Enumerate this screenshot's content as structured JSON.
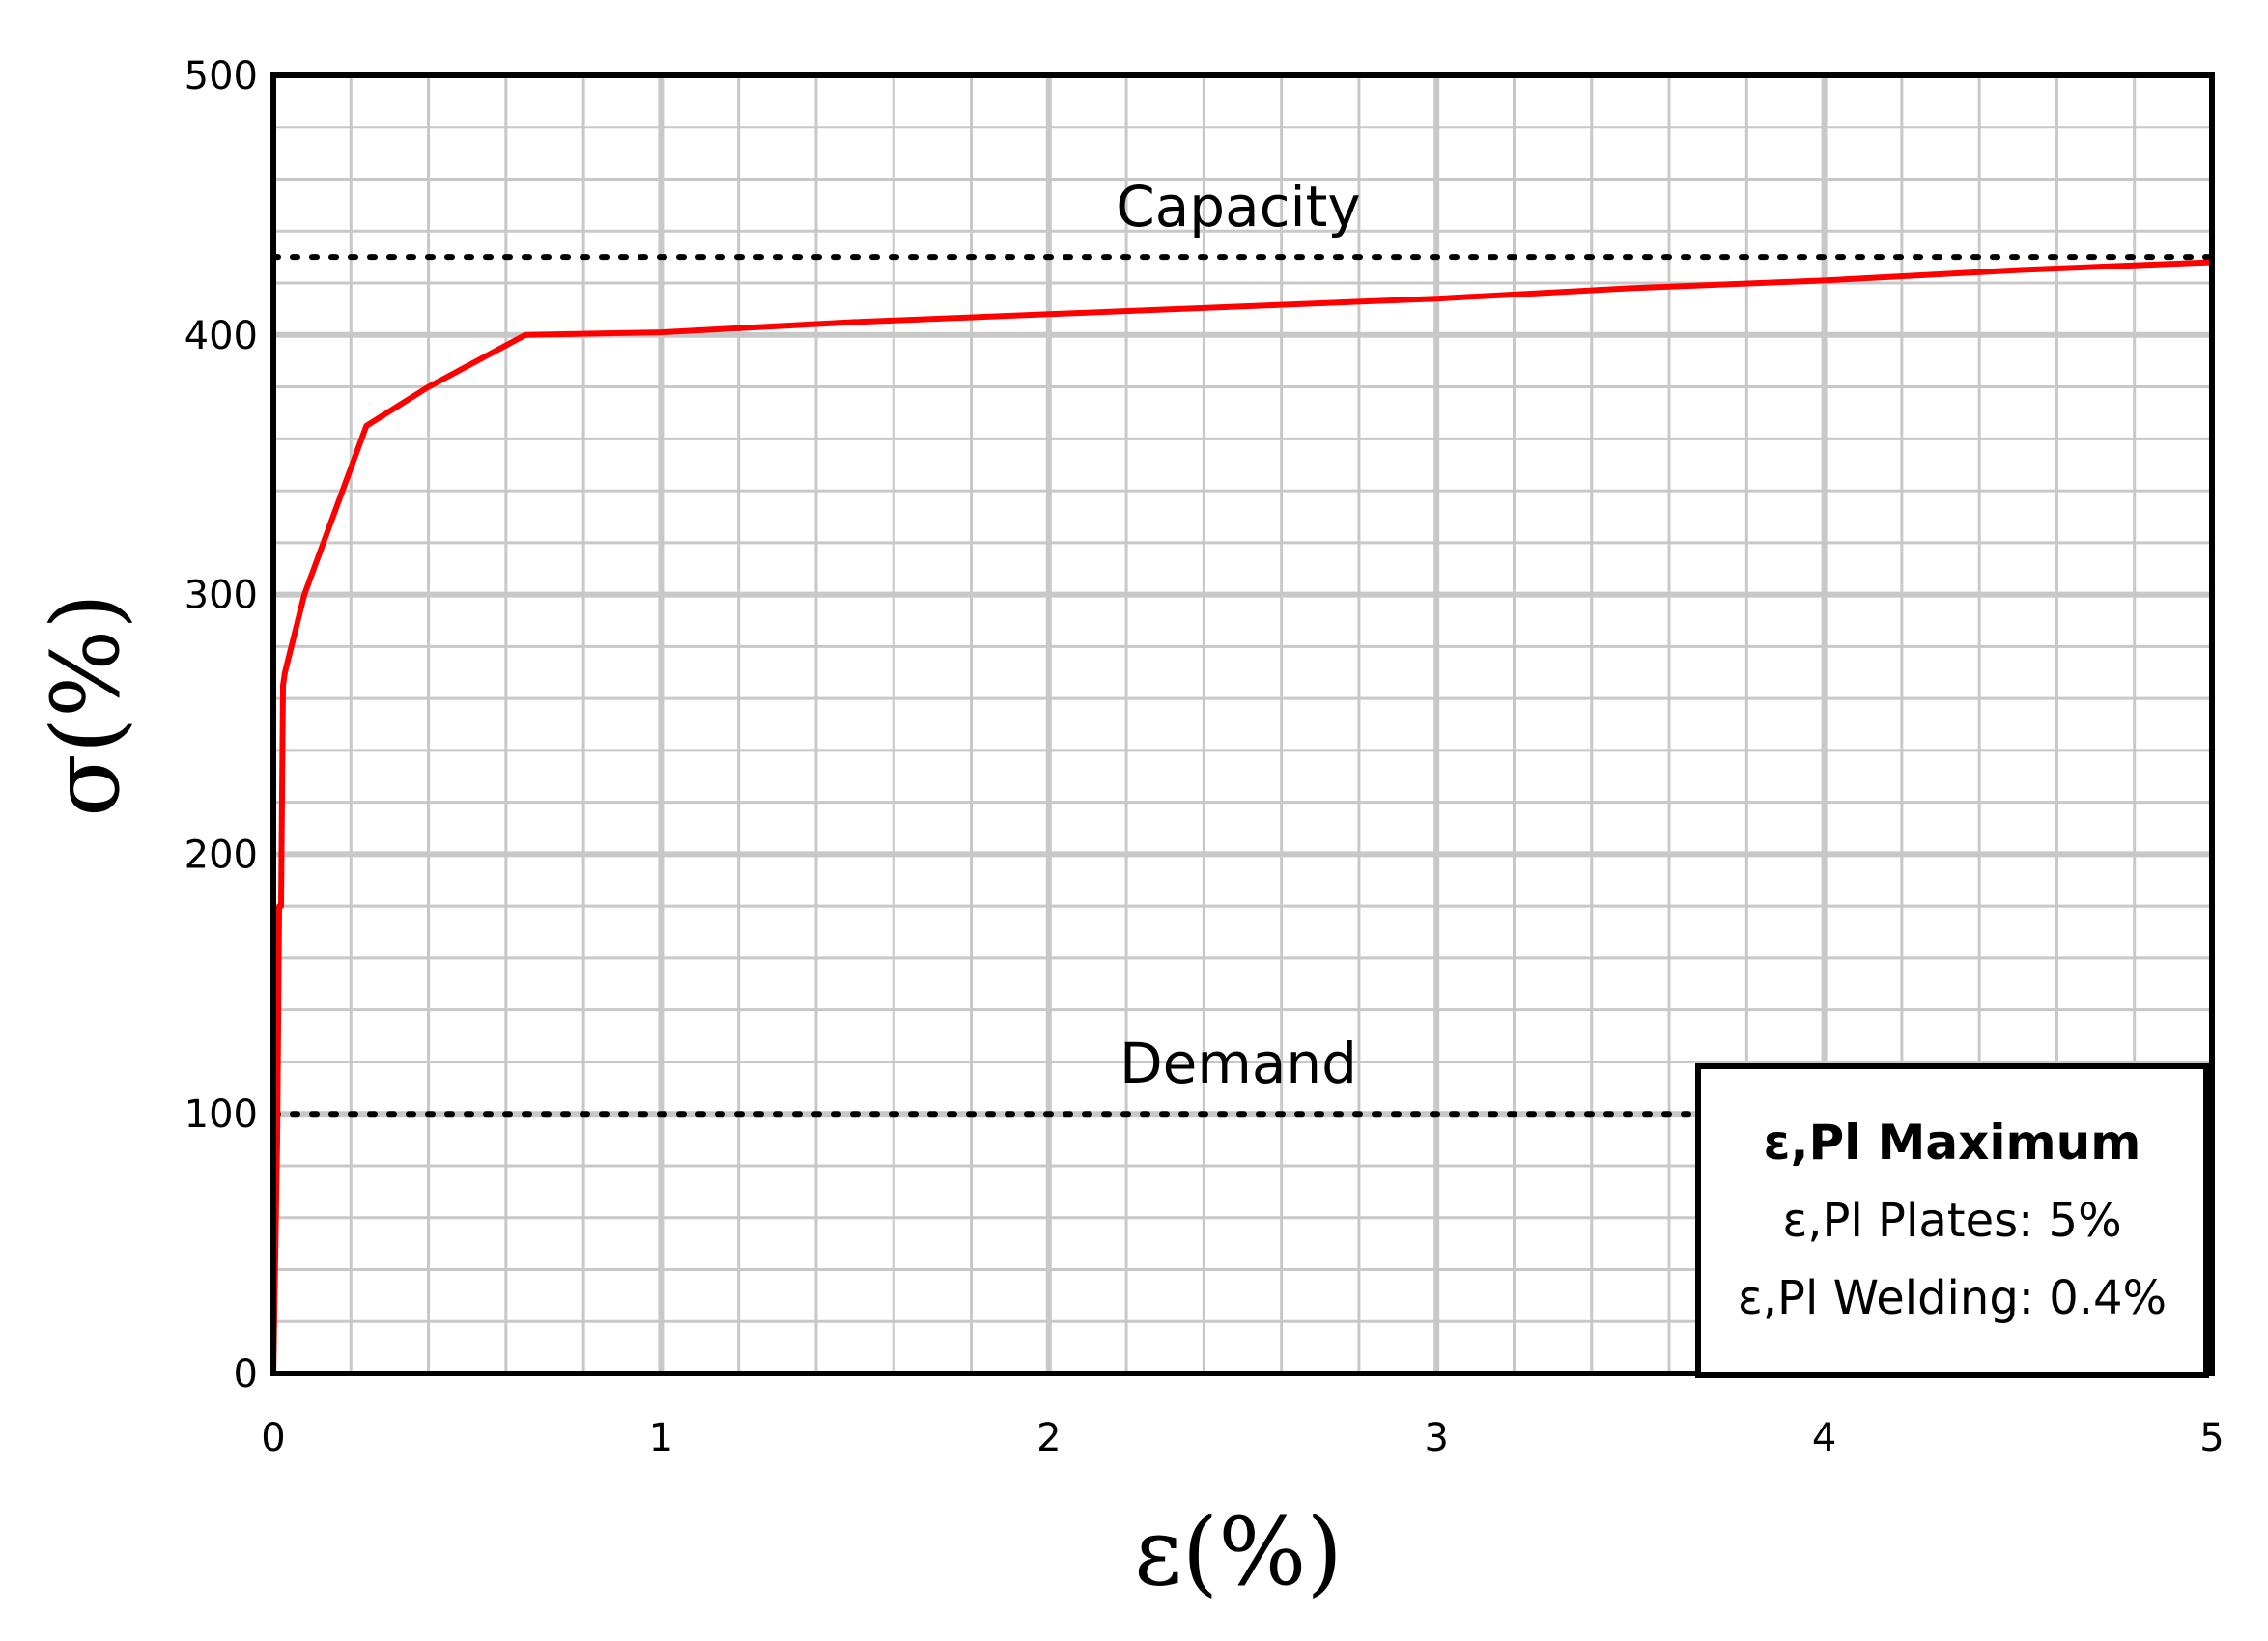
{
  "chart_data": {
    "type": "line",
    "xlabel": "ε(%)",
    "ylabel": "σ(%)",
    "xlim": [
      0,
      5
    ],
    "ylim": [
      0,
      500
    ],
    "x_ticks": [
      "0",
      "1",
      "2",
      "3",
      "4",
      "5"
    ],
    "y_ticks": [
      "0",
      "100",
      "200",
      "300",
      "400",
      "500"
    ],
    "grid": true,
    "series": [
      {
        "color": "#ff0000",
        "x": [
          0.0,
          0.01,
          0.015,
          0.02,
          0.025,
          0.03,
          0.08,
          0.24,
          0.4,
          0.65,
          1.0,
          1.5,
          2.0,
          2.5,
          3.0,
          3.5,
          4.0,
          4.5,
          5.0
        ],
        "y": [
          0,
          90,
          180,
          180,
          265,
          270,
          300,
          365,
          380,
          400,
          401,
          405,
          408,
          411,
          414,
          418,
          421,
          425,
          428
        ]
      }
    ],
    "reference_lines": [
      {
        "label": "Capacity",
        "y": 430,
        "style": "dotted",
        "color": "#000000"
      },
      {
        "label": "Demand",
        "y": 100,
        "style": "dotted",
        "color": "#000000"
      }
    ],
    "legend_box": {
      "title": "ε,Pl Maximum",
      "lines": [
        "ε,Pl Plates: 5%",
        "ε,Pl Welding: 0.4%"
      ],
      "position": "bottom-right"
    }
  }
}
